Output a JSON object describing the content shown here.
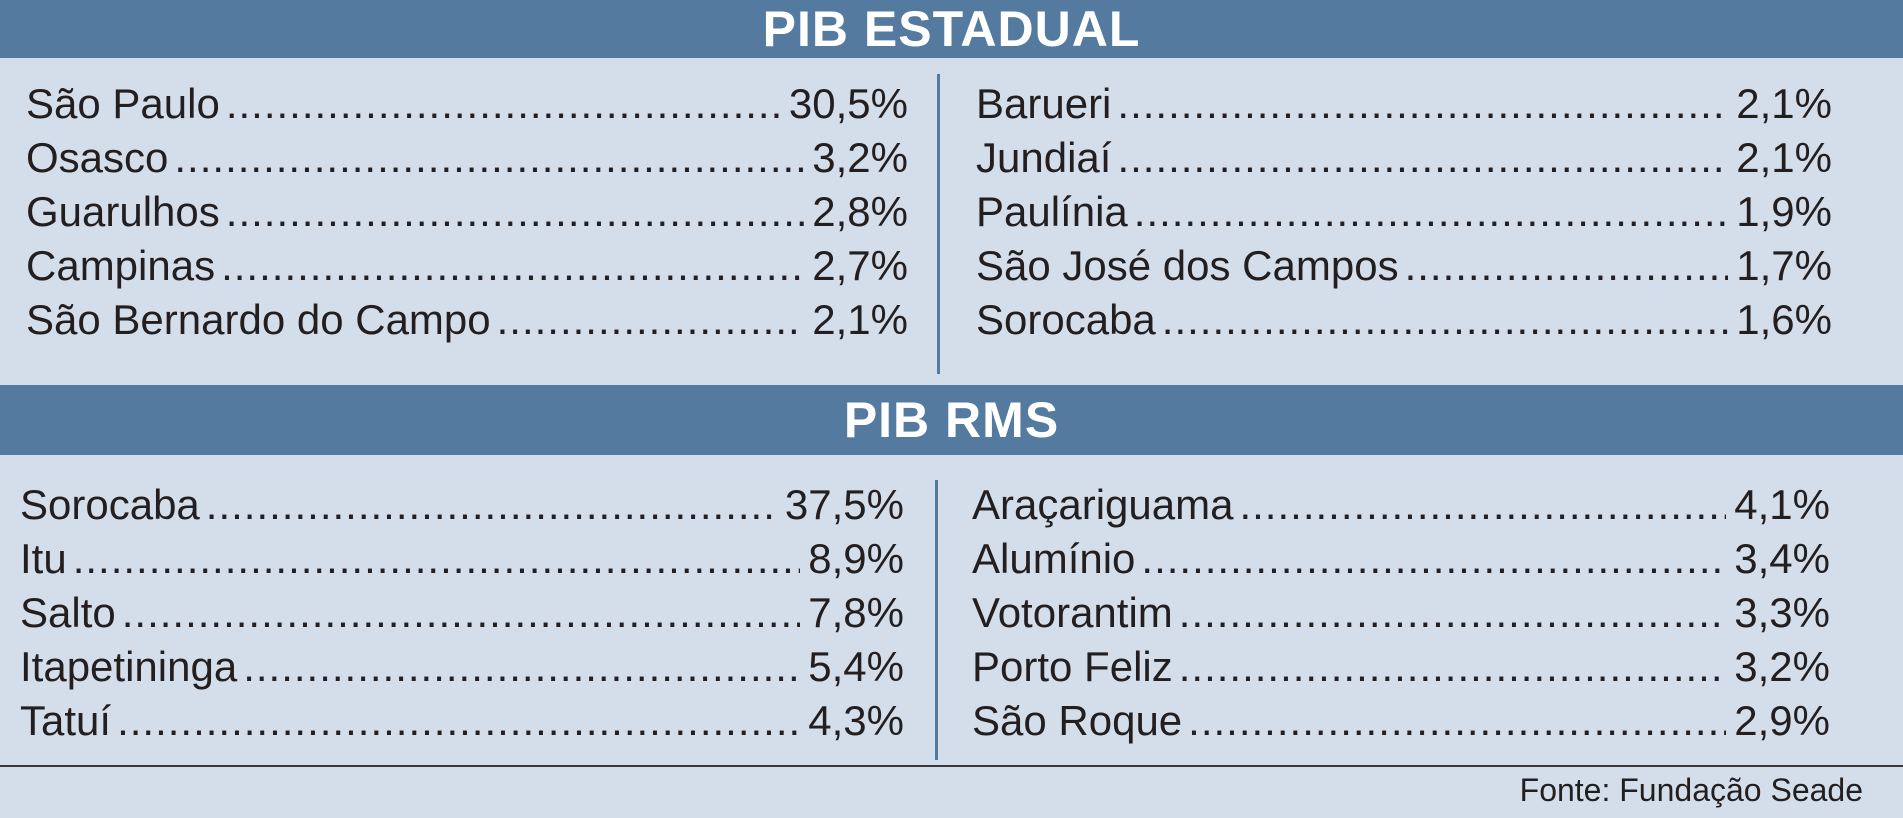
{
  "chart_data": [
    {
      "type": "table",
      "title": "PIB ESTADUAL",
      "columns": [
        [
          {
            "name": "São Paulo",
            "value": "30,5%"
          },
          {
            "name": "Osasco",
            "value": "3,2%"
          },
          {
            "name": "Guarulhos",
            "value": "2,8%"
          },
          {
            "name": "Campinas",
            "value": "2,7%"
          },
          {
            "name": "São Bernardo do Campo",
            "value": "2,1%"
          }
        ],
        [
          {
            "name": "Barueri",
            "value": "2,1%"
          },
          {
            "name": "Jundiaí",
            "value": "2,1%"
          },
          {
            "name": "Paulínia",
            "value": "1,9%"
          },
          {
            "name": "São José dos Campos",
            "value": "1,7%"
          },
          {
            "name": "Sorocaba",
            "value": "1,6%"
          }
        ]
      ]
    },
    {
      "type": "table",
      "title": "PIB RMS",
      "columns": [
        [
          {
            "name": "Sorocaba",
            "value": "37,5%"
          },
          {
            "name": "Itu",
            "value": "8,9%"
          },
          {
            "name": "Salto",
            "value": "7,8%"
          },
          {
            "name": "Itapetininga",
            "value": "5,4%"
          },
          {
            "name": "Tatuí",
            "value": "4,3%"
          }
        ],
        [
          {
            "name": "Araçariguama",
            "value": "4,1%"
          },
          {
            "name": "Alumínio",
            "value": "3,4%"
          },
          {
            "name": "Votorantim",
            "value": "3,3%"
          },
          {
            "name": "Porto Feliz",
            "value": "3,2%"
          },
          {
            "name": "São Roque",
            "value": "2,9%"
          }
        ]
      ]
    }
  ],
  "source": "Fonte: Fundação Seade",
  "colors": {
    "band": "#547a9f",
    "background": "#d4deea",
    "text": "#231f20"
  }
}
